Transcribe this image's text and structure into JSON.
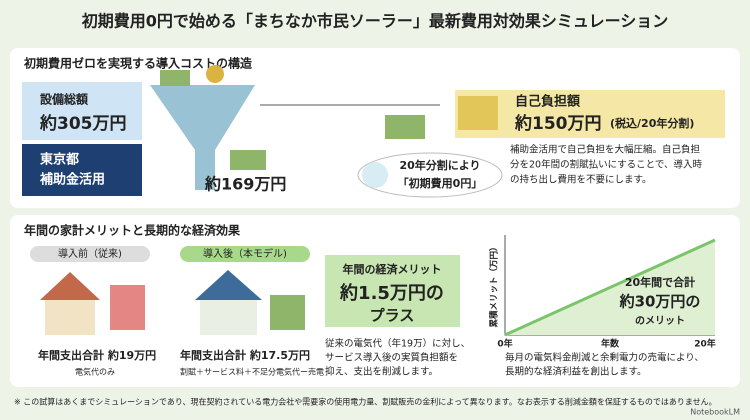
{
  "header": {
    "title": "初期費用0円で始める「まちなか市民ソーラー」最新費用対効果シミュレーション"
  },
  "cost_section": {
    "heading": "初期費用ゼロを実現する導入コストの構造",
    "total": {
      "label": "設備総額",
      "amount": "約305万円"
    },
    "subsidy": {
      "label_lines": [
        "東京都",
        "補助金活用"
      ],
      "amount": "約169万円"
    },
    "installment": [
      "20年分割により",
      "「初期費用0円」"
    ],
    "self_pay": {
      "label": "自己負担額",
      "amount": "約150万円",
      "note": "(税込/20年分割)"
    },
    "description": [
      "補助金活用で自己負担を大幅圧縮。自己負担",
      "分を20年間の割賦払いにすることで、導入時",
      "の持ち出し費用を不要にします。"
    ]
  },
  "benefit_section": {
    "heading": "年間の家計メリットと長期的な経済効果",
    "before": {
      "tag": "導入前（従来)",
      "total": "年間支出合計 約19万円",
      "note": "電気代のみ"
    },
    "after": {
      "tag": "導入後（本モデル)",
      "total": "年間支出合計 約17.5万円",
      "note": "割賦＋サービス料＋不足分電気代ー売電"
    },
    "merit": {
      "label": "年間の経済メリット",
      "amount": "約1.5万円の",
      "suffix": "プラス",
      "description": [
        "従来の電気代（年19万）に対し、",
        "サービス導入後の実質負担額を",
        "抑え、支出を削減します。"
      ]
    },
    "chart": {
      "y_label": "累積メリット（万円）",
      "x_start": "0年",
      "x_label": "年数",
      "x_end": "20年",
      "annotation": [
        "20年間で合計",
        "約30万円の",
        "のメリット"
      ],
      "caption": [
        "毎月の電気料金削減と余剰電力の売電により、",
        "長期的な経済利益を創出します。"
      ]
    }
  },
  "footnote": "※ この試算はあくまでシミュレーションであり、現在契約されている電力会社や需要家の使用電力量、割賦販売の金利によって異なります。なお表示する削減金額を保証するものではありません。",
  "brand": "NotebookLM"
}
